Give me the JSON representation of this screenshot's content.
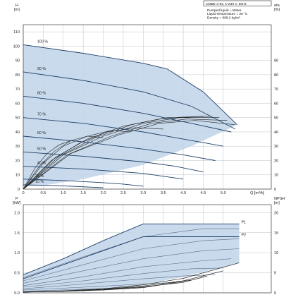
{
  "chart_data": [
    {
      "type": "line",
      "info": {
        "title": "CMBE 3-93, 1*230 V, 50Hz",
        "lines": [
          "Pumped liquid = Water",
          "Liquid temperature = 20 °C",
          "Density = 998.2 kg/m³"
        ]
      },
      "y_title": "H",
      "y_unit": "[m]",
      "y2_title": "eta",
      "y2_unit": "[%]",
      "x_unit": "Q [m³/h]",
      "xlim": [
        0,
        6.2
      ],
      "ylim": [
        0,
        115
      ],
      "y2lim": [
        0,
        115
      ],
      "x_ticks": [
        "0",
        "0.5",
        "1.0",
        "1.5",
        "2.0",
        "2.5",
        "3.0",
        "3.5",
        "4.0",
        "4.5",
        "5.0"
      ],
      "x_tick_values": [
        0,
        0.5,
        1,
        1.5,
        2,
        2.5,
        3,
        3.5,
        4,
        4.5,
        5
      ],
      "y_ticks": [
        "0",
        "10",
        "20",
        "30",
        "40",
        "50",
        "60",
        "70",
        "80",
        "90",
        "100",
        "110"
      ],
      "y_tick_values": [
        0,
        10,
        20,
        30,
        40,
        50,
        60,
        70,
        80,
        90,
        100,
        110
      ],
      "y2_ticks": [
        "0",
        "10",
        "20",
        "30",
        "40",
        "50",
        "60",
        "70",
        "80",
        "90"
      ],
      "y2_tick_values": [
        0,
        10,
        20,
        30,
        40,
        50,
        60,
        70,
        80,
        90
      ],
      "series": [
        {
          "name": "100 %",
          "x": [
            0,
            1.5,
            3,
            3.6,
            4.5,
            5.35
          ],
          "y": [
            101,
            95,
            88,
            84,
            68,
            45
          ]
        },
        {
          "name": "90 %",
          "x": [
            0,
            1.5,
            3,
            4.2,
            5.3
          ],
          "y": [
            82,
            76,
            68,
            58,
            42
          ]
        },
        {
          "name": "80 %",
          "x": [
            0,
            1.5,
            3,
            4.2,
            5.2
          ],
          "y": [
            65,
            60,
            53,
            46,
            40
          ]
        },
        {
          "name": "70 %",
          "x": [
            0,
            1.5,
            3,
            4.0,
            5.0
          ],
          "y": [
            50,
            46,
            40,
            35,
            30
          ]
        },
        {
          "name": "60 %",
          "x": [
            0,
            1.5,
            3,
            4.0,
            4.8
          ],
          "y": [
            37,
            33,
            28,
            24,
            20
          ]
        },
        {
          "name": "50 %",
          "x": [
            0,
            1.5,
            3,
            3.8,
            4.5
          ],
          "y": [
            26,
            23,
            19,
            16,
            12
          ]
        },
        {
          "name": "40 %",
          "x": [
            0,
            1.5,
            3,
            3.5,
            4.0
          ],
          "y": [
            16,
            14,
            11,
            9,
            7
          ]
        },
        {
          "name": "25 %",
          "x": [
            0,
            1.0,
            2.0,
            2.5,
            3.0
          ],
          "y": [
            7,
            6,
            4.5,
            3.5,
            2
          ]
        },
        {
          "name": "10 %",
          "x": [
            0,
            0.8,
            1.6,
            2.0
          ],
          "y": [
            3,
            2.5,
            1.5,
            1
          ]
        }
      ],
      "band_upper": {
        "x": [
          0,
          1.5,
          3,
          3.6,
          4.5,
          5.35
        ],
        "y": [
          101,
          95,
          88,
          84,
          68,
          45
        ]
      },
      "band_lower": {
        "x": [
          5.35,
          4.2,
          3.0,
          1.5,
          0.5,
          0
        ],
        "y": [
          45,
          30,
          17,
          7,
          2.5,
          2
        ]
      },
      "band_right": {
        "x": [
          5.35,
          5.35
        ],
        "y": [
          45,
          30
        ]
      },
      "efficiency_curves": [
        {
          "x": [
            0,
            0.8,
            1.6,
            2.5,
            3.4,
            4.5
          ],
          "y": [
            0,
            22,
            35,
            44,
            49,
            51
          ]
        },
        {
          "x": [
            0,
            0.9,
            1.8,
            2.7,
            3.6,
            4.7
          ],
          "y": [
            0,
            23,
            36,
            45,
            50,
            51
          ]
        },
        {
          "x": [
            0,
            1.0,
            2.0,
            3.0,
            3.9,
            4.9
          ],
          "y": [
            0,
            24,
            37,
            46,
            50,
            50
          ]
        },
        {
          "x": [
            0,
            1.1,
            2.2,
            3.2,
            4.1,
            5.1
          ],
          "y": [
            0,
            24,
            37,
            46,
            49,
            48
          ]
        },
        {
          "x": [
            0,
            1.2,
            2.4,
            3.4,
            4.3,
            5.3
          ],
          "y": [
            0,
            25,
            38,
            46,
            48,
            45
          ]
        },
        {
          "x": [
            0,
            0.7,
            1.4,
            2.1,
            2.8,
            3.5
          ],
          "y": [
            0,
            20,
            32,
            40,
            43,
            42
          ]
        },
        {
          "x": [
            0,
            0.5,
            1.0,
            1.6,
            2.2,
            2.7
          ],
          "y": [
            0,
            18,
            30,
            37,
            41,
            40
          ]
        },
        {
          "x": [
            0,
            0.4,
            0.8,
            1.2,
            1.6,
            2.0
          ],
          "y": [
            0,
            16,
            27,
            34,
            37,
            36
          ]
        },
        {
          "x": [
            0,
            0.3,
            0.6,
            0.9,
            1.2,
            1.5
          ],
          "y": [
            0,
            15,
            25,
            31,
            34,
            33
          ]
        }
      ]
    },
    {
      "type": "line",
      "y_title": "P",
      "y_unit": "[kW]",
      "y2_title": "NPSH",
      "y2_unit": "[m]",
      "xlim": [
        0,
        6.2
      ],
      "ylim": [
        0,
        2.2
      ],
      "y2lim": [
        0,
        22
      ],
      "y_ticks": [
        "0.0",
        "0.5",
        "1.0",
        "1.5",
        "2.0"
      ],
      "y_tick_values": [
        0,
        0.5,
        1.0,
        1.5,
        2.0
      ],
      "y2_ticks": [
        "0",
        "5",
        "10",
        "15",
        "20"
      ],
      "y2_tick_values": [
        0,
        5,
        10,
        15,
        20
      ],
      "series": [
        {
          "name": "P1",
          "x": [
            0,
            1,
            2,
            3,
            4,
            5.4
          ],
          "y": [
            0.45,
            0.85,
            1.3,
            1.72,
            1.72,
            1.72
          ]
        },
        {
          "name": "P2",
          "x": [
            0,
            1,
            2,
            3,
            4,
            5.4
          ],
          "y": [
            0.35,
            0.7,
            1.05,
            1.4,
            1.4,
            1.4
          ]
        }
      ],
      "power_curves": [
        {
          "x": [
            0,
            1.5,
            3,
            4.5,
            5.4
          ],
          "y": [
            0.38,
            0.9,
            1.4,
            1.6,
            1.6
          ]
        },
        {
          "x": [
            0,
            1.5,
            3,
            4.5,
            5.4
          ],
          "y": [
            0.3,
            0.7,
            1.1,
            1.3,
            1.35
          ]
        },
        {
          "x": [
            0,
            1.5,
            3,
            4.5,
            5.4
          ],
          "y": [
            0.24,
            0.55,
            0.85,
            1.05,
            1.1
          ]
        },
        {
          "x": [
            0,
            1.5,
            3,
            4.5,
            5.2
          ],
          "y": [
            0.18,
            0.4,
            0.65,
            0.8,
            0.85
          ]
        },
        {
          "x": [
            0,
            1.5,
            3,
            4.2,
            5.0
          ],
          "y": [
            0.14,
            0.3,
            0.48,
            0.6,
            0.62
          ]
        },
        {
          "x": [
            0,
            1.5,
            3,
            4.0,
            4.8
          ],
          "y": [
            0.1,
            0.22,
            0.35,
            0.42,
            0.45
          ]
        },
        {
          "x": [
            0,
            1.5,
            3,
            3.8
          ],
          "y": [
            0.07,
            0.14,
            0.22,
            0.26
          ]
        },
        {
          "x": [
            0,
            1.2,
            2.4,
            3.0
          ],
          "y": [
            0.04,
            0.08,
            0.12,
            0.14
          ]
        }
      ],
      "band_upper": {
        "x": [
          0,
          1,
          2,
          3,
          4,
          5.4
        ],
        "y": [
          0.45,
          0.85,
          1.3,
          1.72,
          1.72,
          1.72
        ]
      },
      "band_lower": {
        "x": [
          5.4,
          4,
          3,
          2,
          1,
          0
        ],
        "y": [
          0.75,
          0.4,
          0.2,
          0.1,
          0.05,
          0.03
        ]
      },
      "npsh_curves": [
        {
          "x": [
            0,
            1,
            2,
            3,
            4,
            5.4
          ],
          "y": [
            0.2,
            0.5,
            1.0,
            2.0,
            3.6,
            7.5
          ]
        },
        {
          "x": [
            0,
            1,
            2,
            3,
            4,
            5.0
          ],
          "y": [
            0.2,
            0.4,
            0.9,
            1.7,
            3.0,
            5.5
          ]
        },
        {
          "x": [
            0,
            1,
            2,
            3,
            4,
            4.6
          ],
          "y": [
            0.2,
            0.4,
            0.8,
            1.5,
            2.6,
            4.2
          ]
        },
        {
          "x": [
            0,
            1,
            2,
            3,
            4.2
          ],
          "y": [
            0.2,
            0.35,
            0.7,
            1.3,
            3.2
          ]
        }
      ]
    }
  ],
  "colors": {
    "band": "#c3d6ea",
    "curve": "#1f3f66",
    "curve_light": "#5a6f86",
    "eff": "#202020",
    "grid": "#aab4c0",
    "axis": "#222222"
  }
}
